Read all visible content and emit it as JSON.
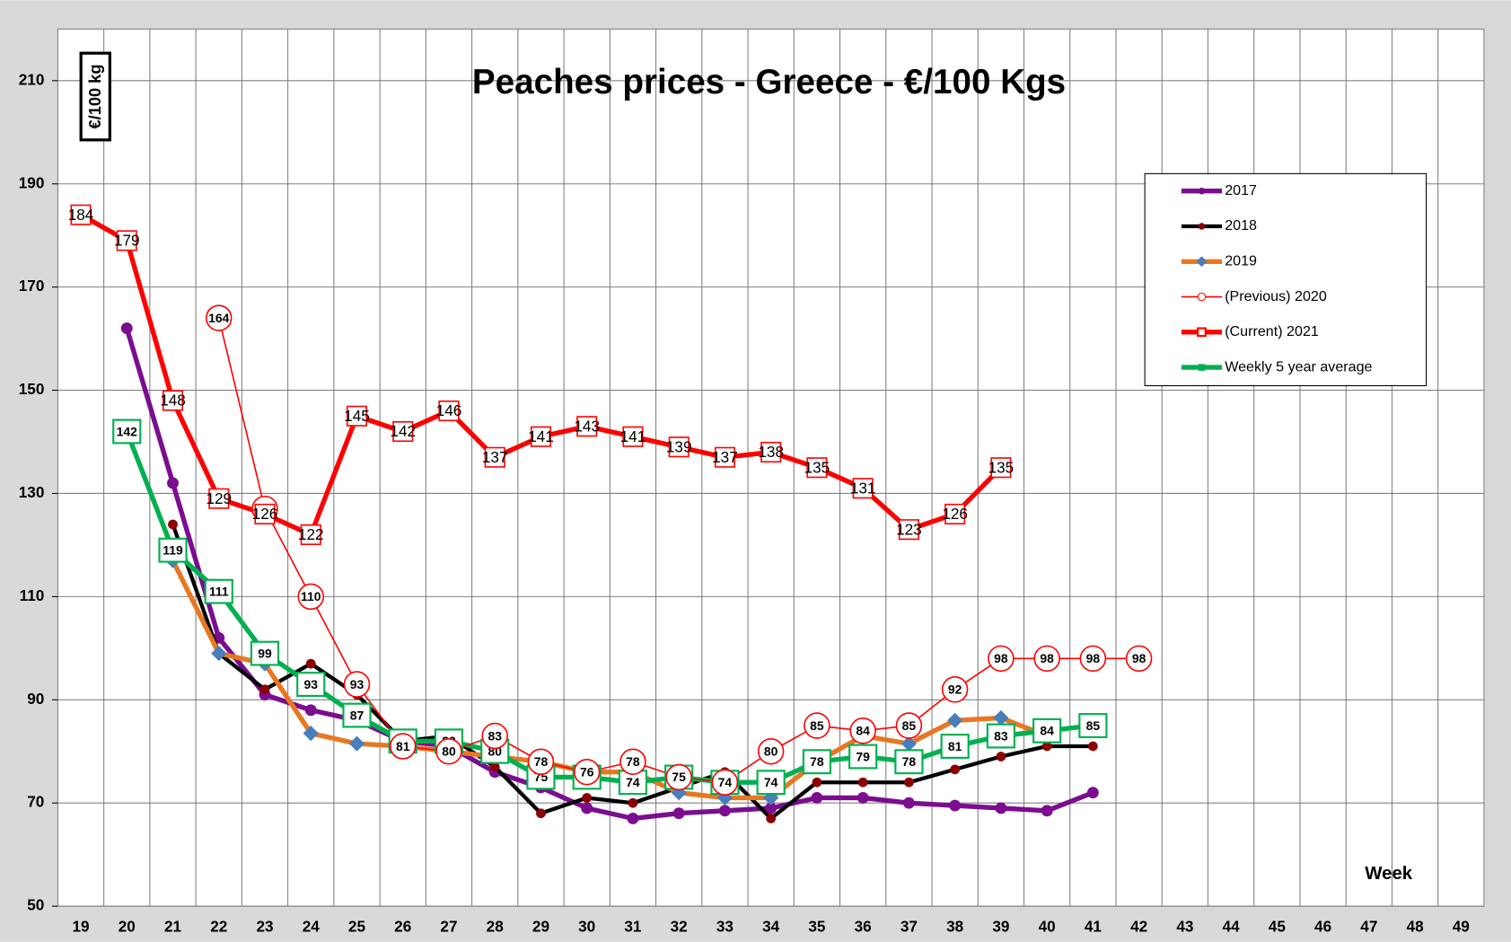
{
  "chart_data": {
    "type": "line",
    "title": "Peaches prices - Greece - €/100 Kgs",
    "y_label": "€/100 kg",
    "x_label": "Week",
    "categories": [
      "19",
      "20",
      "21",
      "22",
      "23",
      "24",
      "25",
      "26",
      "27",
      "28",
      "29",
      "30",
      "31",
      "32",
      "33",
      "34",
      "35",
      "36",
      "37",
      "38",
      "39",
      "40",
      "41",
      "42",
      "43",
      "44",
      "45",
      "46",
      "47",
      "48",
      "49"
    ],
    "ylim": [
      50,
      220
    ],
    "yticks": [
      50,
      70,
      90,
      110,
      130,
      150,
      170,
      190,
      210
    ],
    "grid": true,
    "legend": "upper right",
    "series": [
      {
        "name": "2017",
        "color": "#7b0d8f",
        "marker": "circle",
        "marker_color": "#7b0d8f",
        "width": 5,
        "data_labels": false,
        "values": [
          null,
          162,
          132,
          102,
          91,
          88,
          86,
          82,
          81,
          76,
          73,
          69,
          67,
          68,
          68.5,
          69,
          71,
          71,
          70,
          69.5,
          69,
          68.5,
          72,
          null,
          null,
          null,
          null,
          null,
          null,
          null,
          null
        ]
      },
      {
        "name": "2018",
        "color": "#000000",
        "marker": "circle",
        "marker_color": "#8b0000",
        "width": 4,
        "data_labels": false,
        "values": [
          null,
          null,
          124,
          99,
          92,
          97,
          91,
          82,
          83,
          77,
          68,
          71,
          70,
          73,
          76,
          67,
          74,
          74,
          74,
          76.5,
          79,
          81,
          81,
          null,
          null,
          null,
          null,
          null,
          null,
          null,
          null
        ]
      },
      {
        "name": "2019",
        "color": "#e87722",
        "marker": "diamond",
        "marker_color": "#4a7ebb",
        "width": 5,
        "data_labels": false,
        "values": [
          null,
          null,
          117,
          99,
          97,
          83.5,
          81.5,
          81,
          80,
          79,
          78,
          76,
          76,
          72,
          71,
          71,
          78,
          83,
          81.5,
          86,
          86.5,
          83,
          null,
          null,
          null,
          null,
          null,
          null,
          null,
          null,
          null
        ]
      },
      {
        "name": "Weekly 5 year average",
        "color": "#00b050",
        "marker": "square",
        "marker_color": "#00b050",
        "width": 5,
        "data_labels": true,
        "values": [
          null,
          142,
          119,
          111,
          99,
          93,
          87,
          82,
          82,
          80,
          75,
          75,
          74,
          75,
          74,
          74,
          78,
          79,
          78,
          81,
          83,
          84,
          85,
          null,
          null,
          null,
          null,
          null,
          null,
          null,
          null
        ]
      },
      {
        "name": "(Previous) 2020",
        "color": "#ff0000",
        "marker": "circle",
        "marker_color": "#ff0000",
        "width": 1.5,
        "data_labels": true,
        "values": [
          null,
          null,
          null,
          164,
          127,
          110,
          93,
          81,
          80,
          83,
          78,
          76,
          78,
          75,
          74,
          80,
          85,
          84,
          85,
          92,
          98,
          98,
          98,
          98,
          null,
          null,
          null,
          null,
          null,
          null,
          null
        ]
      },
      {
        "name": " (Current) 2021",
        "color": "#ff0000",
        "marker": "square",
        "marker_color": "#ff0000",
        "width": 5,
        "data_labels": true,
        "values": [
          184,
          179,
          148,
          129,
          126,
          122,
          145,
          142,
          146,
          137,
          141,
          143,
          141,
          139,
          137,
          138,
          135,
          131,
          123,
          126,
          135,
          null,
          null,
          null,
          null,
          null,
          null,
          null,
          null,
          null,
          null
        ]
      }
    ]
  }
}
